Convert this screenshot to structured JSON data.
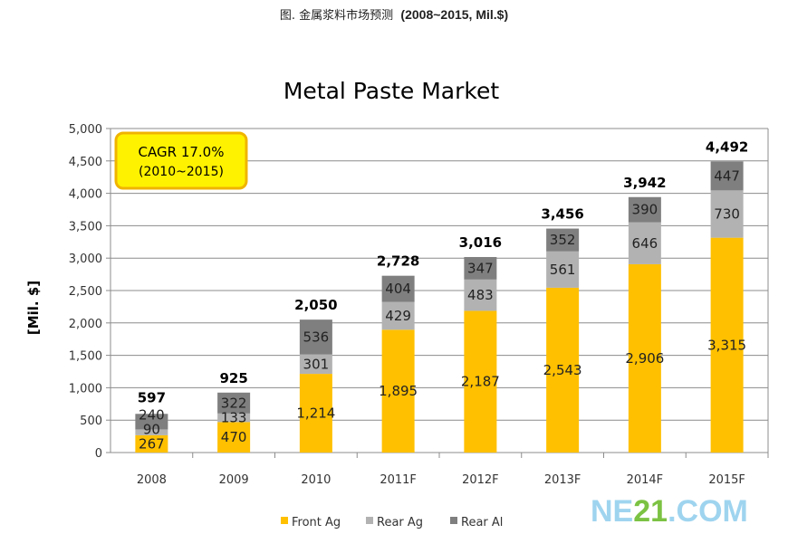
{
  "header": {
    "caption_cn": "图. 金属浆料市场预测",
    "caption_unit": "(2008~2015, Mil.$)"
  },
  "watermark": "NE21.COM",
  "chart_data": {
    "type": "bar",
    "stacked": true,
    "title": "Metal Paste Market",
    "xlabel": "",
    "ylabel": "[Mil. $]",
    "ylim": [
      0,
      5000
    ],
    "yticks": [
      0,
      500,
      1000,
      1500,
      2000,
      2500,
      3000,
      3500,
      4000,
      4500,
      5000
    ],
    "ytick_labels": [
      "0",
      "500",
      "1,000",
      "1,500",
      "2,000",
      "2,500",
      "3,000",
      "3,500",
      "4,000",
      "4,500",
      "5,000"
    ],
    "grid": true,
    "legend_position": "bottom",
    "categories": [
      "2008",
      "2009",
      "2010",
      "2011F",
      "2012F",
      "2013F",
      "2014F",
      "2015F"
    ],
    "series": [
      {
        "name": "Front Ag",
        "color": "#FFC000",
        "values": [
          267,
          470,
          1214,
          1895,
          2187,
          2543,
          2906,
          3315
        ],
        "labels": [
          "267",
          "470",
          "1,214",
          "1,895",
          "2,187",
          "2,543",
          "2,906",
          "3,315"
        ]
      },
      {
        "name": "Rear Ag",
        "color": "#B2B2B2",
        "values": [
          90,
          133,
          301,
          429,
          483,
          561,
          646,
          730
        ],
        "labels": [
          "90",
          "133",
          "301",
          "429",
          "483",
          "561",
          "646",
          "730"
        ]
      },
      {
        "name": "Rear Al",
        "color": "#7F7F7F",
        "values": [
          240,
          322,
          536,
          404,
          347,
          352,
          390,
          447
        ],
        "labels": [
          "240",
          "322",
          "536",
          "404",
          "347",
          "352",
          "390",
          "447"
        ]
      }
    ],
    "totals": [
      "597",
      "925",
      "2,050",
      "2,728",
      "3,016",
      "3,456",
      "3,942",
      "4,492"
    ],
    "annotation": {
      "line1": "CAGR 17.0%",
      "line2": "(2010~2015)",
      "fill": "#FFF200",
      "border": "#F0B400"
    }
  }
}
